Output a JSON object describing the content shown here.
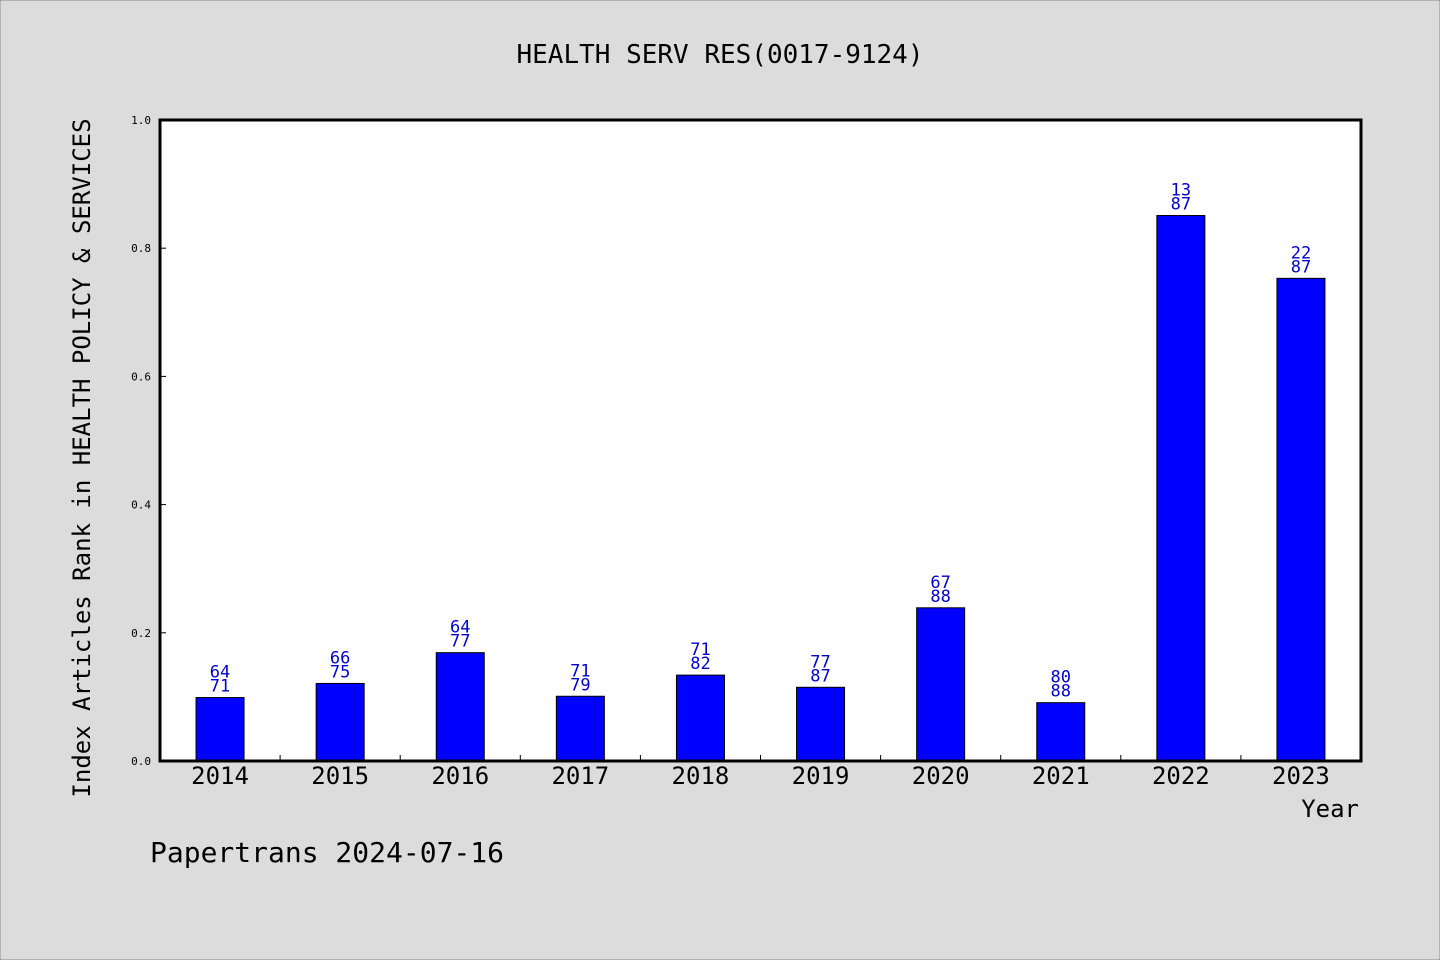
{
  "colors": {
    "background": "#dcdcdc",
    "plot_background": "#ffffff",
    "bar": "#0000ff",
    "bar_label": "#0000cc",
    "axis": "#000000"
  },
  "footer": "Papertrans 2024-07-16",
  "chart_data": {
    "type": "bar",
    "title": "HEALTH SERV RES(0017-9124)",
    "xlabel": "Year",
    "ylabel": "Index Articles Rank in HEALTH POLICY & SERVICES",
    "ylim": [
      0,
      1
    ],
    "yticks": [
      "0.0",
      "0.2",
      "0.4",
      "0.6",
      "0.8",
      "1.0"
    ],
    "grid": false,
    "legend": "none",
    "categories": [
      "2014",
      "2015",
      "2016",
      "2017",
      "2018",
      "2019",
      "2020",
      "2021",
      "2022",
      "2023"
    ],
    "values": [
      0.099,
      0.121,
      0.169,
      0.101,
      0.134,
      0.115,
      0.239,
      0.091,
      0.851,
      0.753
    ],
    "rank": [
      "64",
      "66",
      "64",
      "71",
      "71",
      "77",
      "67",
      "80",
      "13",
      "22"
    ],
    "total": [
      "71",
      "75",
      "77",
      "79",
      "82",
      "87",
      "88",
      "88",
      "87",
      "87"
    ]
  }
}
